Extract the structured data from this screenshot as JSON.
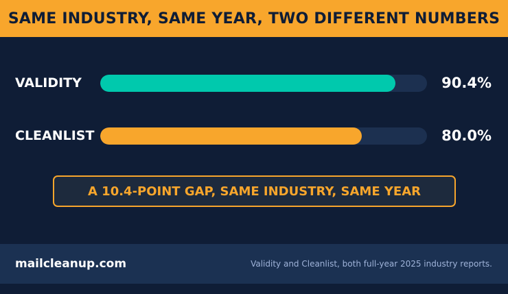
{
  "header": {
    "title": "SAME INDUSTRY, SAME YEAR, TWO DIFFERENT NUMBERS"
  },
  "chart_data": {
    "type": "bar",
    "orientation": "horizontal",
    "title": "SAME INDUSTRY, SAME YEAR, TWO DIFFERENT NUMBERS",
    "categories": [
      "VALIDITY",
      "CLEANLIST"
    ],
    "values": [
      90.4,
      80.0
    ],
    "value_labels": [
      "90.4%",
      "80.0%"
    ],
    "unit": "%",
    "xlim": [
      0,
      100
    ],
    "bar_colors": [
      "#00c9ad",
      "#f8a62c"
    ],
    "track_color": "#1c3050",
    "grid": false,
    "legend": "none"
  },
  "callout": {
    "text": "A 10.4-POINT GAP, SAME INDUSTRY, SAME YEAR"
  },
  "footer": {
    "site": "mailcleanup.com",
    "source": "Validity and Cleanlist, both full-year 2025 industry reports."
  },
  "colors": {
    "background": "#0f1d36",
    "accent_orange": "#f8a62c",
    "accent_teal": "#00c9ad",
    "footer_bg": "#1b3152"
  }
}
